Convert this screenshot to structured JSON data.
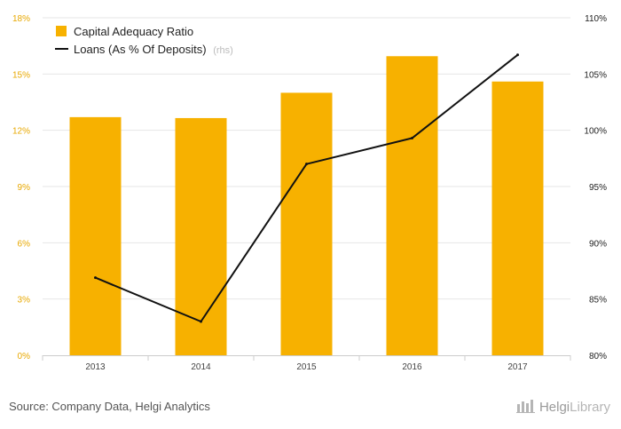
{
  "chart_data": {
    "type": "bar",
    "categories": [
      "2013",
      "2014",
      "2015",
      "2016",
      "2017"
    ],
    "series": [
      {
        "name": "Capital Adequacy Ratio",
        "type": "bar",
        "axis": "left",
        "values": [
          12.7,
          12.65,
          14.0,
          15.95,
          14.6
        ]
      },
      {
        "name": "Loans (As % Of Deposits)",
        "type": "line",
        "axis": "right",
        "values": [
          86.9,
          83.0,
          97.0,
          99.3,
          106.7
        ]
      }
    ],
    "y_left": {
      "min": 0,
      "max": 18,
      "ticks": [
        "0%",
        "3%",
        "6%",
        "9%",
        "12%",
        "15%",
        "18%"
      ]
    },
    "y_right": {
      "min": 80,
      "max": 110,
      "ticks": [
        "80%",
        "85%",
        "90%",
        "95%",
        "100%",
        "105%",
        "110%"
      ]
    },
    "legend": {
      "position": "top-left",
      "bar_label": "Capital Adequacy Ratio",
      "line_label": "Loans (As % Of Deposits)",
      "rhs_tag": "(rhs)"
    },
    "grid": true,
    "colors": {
      "bar": "#f7b100",
      "line": "#111111",
      "left_tick": "#e8a800",
      "right_tick": "#222222",
      "grid": "#e6e6e6"
    }
  },
  "footer": {
    "source": "Source: Company Data, Helgi Analytics",
    "brand_part1": "Helgi",
    "brand_part2": "Library"
  }
}
